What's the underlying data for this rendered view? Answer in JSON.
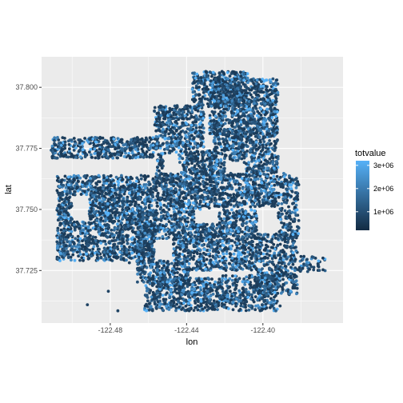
{
  "chart_data": {
    "type": "scatter",
    "xlabel": "lon",
    "ylabel": "lat",
    "xlim": [
      -122.516,
      -122.358
    ],
    "ylim": [
      37.7035,
      37.8125
    ],
    "x_ticks": [
      {
        "value": -122.48,
        "label": "-122.48"
      },
      {
        "value": -122.44,
        "label": "-122.44"
      },
      {
        "value": -122.4,
        "label": "-122.40"
      }
    ],
    "y_ticks": [
      {
        "value": 37.725,
        "label": "37.725"
      },
      {
        "value": 37.75,
        "label": "37.750"
      },
      {
        "value": 37.775,
        "label": "37.775"
      },
      {
        "value": 37.8,
        "label": "37.800"
      }
    ],
    "grid": true,
    "panel_background": "#ebebeb",
    "grid_color": "#ffffff",
    "legend": {
      "title": "totvalue",
      "placement": "right",
      "range": [
        200000,
        3200000
      ],
      "ticks": [
        {
          "value": 1000000,
          "label": "1e+06"
        },
        {
          "value": 2000000,
          "label": "2e+06"
        },
        {
          "value": 3000000,
          "label": "3e+06"
        }
      ],
      "low_color": "#132b43",
      "high_color": "#56b1f7"
    },
    "point_regions": [
      {
        "lon": [
          -122.511,
          -122.457
        ],
        "lat": [
          37.771,
          37.7795
        ],
        "density": 0.9
      },
      {
        "lon": [
          -122.457,
          -122.431
        ],
        "lat": [
          37.7745,
          37.7925
        ],
        "density": 0.9
      },
      {
        "lon": [
          -122.437,
          -122.408
        ],
        "lat": [
          37.792,
          37.8065
        ],
        "density": 0.9
      },
      {
        "lon": [
          -122.428,
          -122.392
        ],
        "lat": [
          37.781,
          37.8035
        ],
        "density": 0.9
      },
      {
        "lon": [
          -122.508,
          -122.472
        ],
        "lat": [
          37.729,
          37.764
        ],
        "density": 0.9
      },
      {
        "lon": [
          -122.472,
          -122.456
        ],
        "lat": [
          37.728,
          37.764
        ],
        "density": 0.85
      },
      {
        "lon": [
          -122.456,
          -122.426
        ],
        "lat": [
          37.748,
          37.774
        ],
        "density": 0.9
      },
      {
        "lon": [
          -122.426,
          -122.392
        ],
        "lat": [
          37.751,
          37.783
        ],
        "density": 0.85
      },
      {
        "lon": [
          -122.392,
          -122.381
        ],
        "lat": [
          37.738,
          37.765
        ],
        "density": 0.6
      },
      {
        "lon": [
          -122.466,
          -122.438
        ],
        "lat": [
          37.72,
          37.748
        ],
        "density": 0.8
      },
      {
        "lon": [
          -122.438,
          -122.403
        ],
        "lat": [
          37.725,
          37.75
        ],
        "density": 0.85
      },
      {
        "lon": [
          -122.403,
          -122.382
        ],
        "lat": [
          37.715,
          37.74
        ],
        "density": 0.7
      },
      {
        "lon": [
          -122.462,
          -122.422
        ],
        "lat": [
          37.7085,
          37.722
        ],
        "density": 0.85
      },
      {
        "lon": [
          -122.422,
          -122.392
        ],
        "lat": [
          37.7085,
          37.723
        ],
        "density": 0.8
      },
      {
        "lon": [
          -122.382,
          -122.367
        ],
        "lat": [
          37.7245,
          37.731
        ],
        "density": 0.5
      }
    ],
    "point_gaps": [
      {
        "lon": [
          -122.511,
          -122.457
        ],
        "lat": [
          37.765,
          37.7705
        ]
      },
      {
        "lon": [
          -122.5,
          -122.491
        ],
        "lat": [
          37.745,
          37.756
        ]
      },
      {
        "lon": [
          -122.452,
          -122.444
        ],
        "lat": [
          37.765,
          37.773
        ]
      },
      {
        "lon": [
          -122.457,
          -122.447
        ],
        "lat": [
          37.729,
          37.738
        ]
      },
      {
        "lon": [
          -122.436,
          -122.423
        ],
        "lat": [
          37.744,
          37.75
        ]
      },
      {
        "lon": [
          -122.42,
          -122.41
        ],
        "lat": [
          37.765,
          37.77
        ]
      }
    ]
  }
}
